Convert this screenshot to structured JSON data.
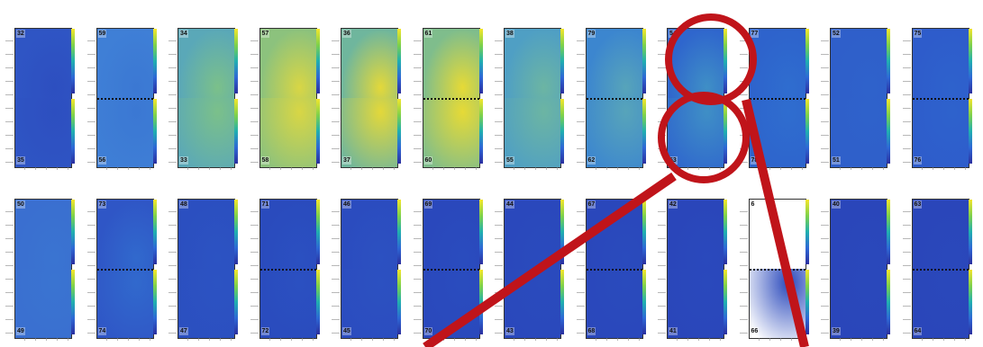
{
  "panels": [
    {
      "top": "32",
      "bottom": "35",
      "top_color": "#2f55c4",
      "bottom_color": "#2d4fc0",
      "midline": false,
      "blank_top": false
    },
    {
      "top": "59",
      "bottom": "56",
      "top_color": "#3f7fd6",
      "bottom_color": "#3b78d3",
      "midline": true,
      "blank_top": false
    },
    {
      "top": "34",
      "bottom": "33",
      "top_color": "#5aa8b8",
      "bottom_color": "#7bc08a",
      "midline": false,
      "blank_top": false
    },
    {
      "top": "57",
      "bottom": "58",
      "top_color": "#8cc27d",
      "bottom_color": "#d8d645",
      "midline": false,
      "blank_top": false
    },
    {
      "top": "36",
      "bottom": "37",
      "top_color": "#6fb69d",
      "bottom_color": "#e3d83a",
      "midline": false,
      "blank_top": false
    },
    {
      "top": "61",
      "bottom": "60",
      "top_color": "#7fbd8c",
      "bottom_color": "#e6da36",
      "midline": true,
      "blank_top": false
    },
    {
      "top": "38",
      "bottom": "55",
      "top_color": "#4f9fc4",
      "bottom_color": "#6cb5a3",
      "midline": false,
      "blank_top": false
    },
    {
      "top": "79",
      "bottom": "62",
      "top_color": "#3c86cf",
      "bottom_color": "#57a4ba",
      "midline": true,
      "blank_top": false
    },
    {
      "top": "54",
      "bottom": "53",
      "top_color": "#2f66cd",
      "bottom_color": "#3f8fc6",
      "midline": false,
      "blank_top": false
    },
    {
      "top": "77",
      "bottom": "78",
      "top_color": "#2e63cc",
      "bottom_color": "#2f6dcf",
      "midline": true,
      "blank_top": false
    },
    {
      "top": "52",
      "bottom": "51",
      "top_color": "#2f5fca",
      "bottom_color": "#2f62cb",
      "midline": false,
      "blank_top": false
    },
    {
      "top": "75",
      "bottom": "76",
      "top_color": "#2e5ccb",
      "bottom_color": "#2e62cc",
      "midline": true,
      "blank_top": false
    },
    {
      "top": "50",
      "bottom": "49",
      "top_color": "#3a6fd0",
      "bottom_color": "#3a74d1",
      "midline": false,
      "blank_top": false
    },
    {
      "top": "73",
      "bottom": "74",
      "top_color": "#2f56c6",
      "bottom_color": "#3169cd",
      "midline": true,
      "blank_top": false
    },
    {
      "top": "48",
      "bottom": "47",
      "top_color": "#2b4fc0",
      "bottom_color": "#2c53c2",
      "midline": false,
      "blank_top": false
    },
    {
      "top": "71",
      "bottom": "72",
      "top_color": "#2a4bbd",
      "bottom_color": "#2b50c1",
      "midline": true,
      "blank_top": false
    },
    {
      "top": "46",
      "bottom": "45",
      "top_color": "#2b4cbf",
      "bottom_color": "#2c51c1",
      "midline": false,
      "blank_top": false
    },
    {
      "top": "69",
      "bottom": "70",
      "top_color": "#2a48bc",
      "bottom_color": "#2a4cbe",
      "midline": true,
      "blank_top": false
    },
    {
      "top": "44",
      "bottom": "43",
      "top_color": "#2a48bc",
      "bottom_color": "#2a4bbd",
      "midline": false,
      "blank_top": false
    },
    {
      "top": "67",
      "bottom": "68",
      "top_color": "#2a47bb",
      "bottom_color": "#2a4bbd",
      "midline": true,
      "blank_top": false
    },
    {
      "top": "42",
      "bottom": "41",
      "top_color": "#2a46ba",
      "bottom_color": "#2a49bc",
      "midline": false,
      "blank_top": false
    },
    {
      "top": "6",
      "bottom": "66",
      "top_color": "#ffffff",
      "bottom_color": "#2a49bc",
      "midline": true,
      "blank_top": true
    },
    {
      "top": "40",
      "bottom": "39",
      "top_color": "#2a46ba",
      "bottom_color": "#2a48bb",
      "midline": false,
      "blank_top": false
    },
    {
      "top": "63",
      "bottom": "64",
      "top_color": "#2a46ba",
      "bottom_color": "#2a48bb",
      "midline": true,
      "blank_top": false
    }
  ],
  "annotation_color": "#c0141a"
}
